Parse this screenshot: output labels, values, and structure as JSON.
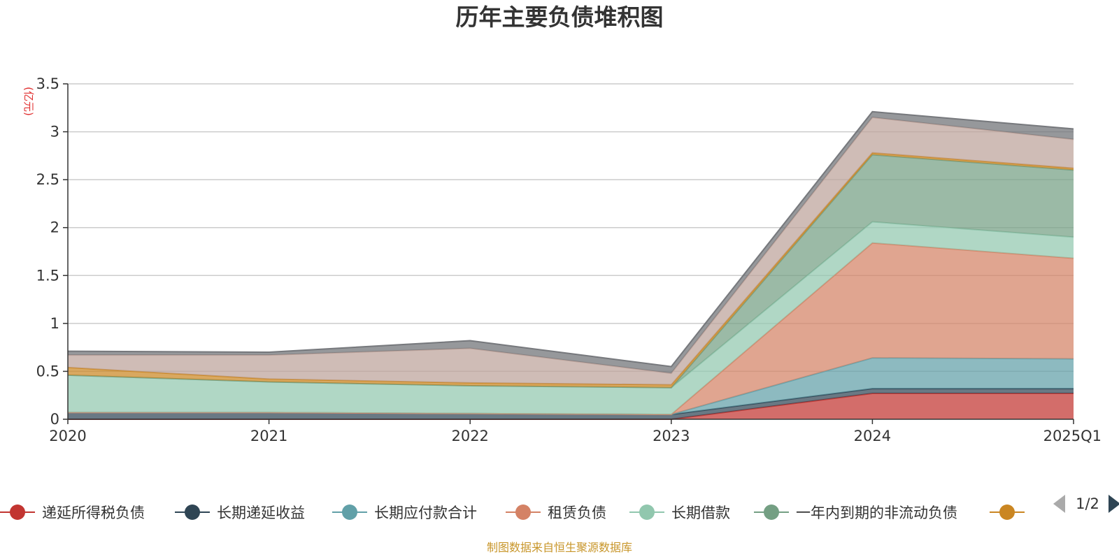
{
  "chart_data": {
    "type": "area",
    "stacked": true,
    "title": "历年主要负债堆积图",
    "unit": "(亿元)",
    "x": [
      "2020",
      "2021",
      "2022",
      "2023",
      "2024",
      "2025Q1"
    ],
    "ylim": [
      0,
      3.5
    ],
    "yticks": [
      "0",
      "0.5",
      "1",
      "1.5",
      "2",
      "2.5",
      "3",
      "3.5"
    ],
    "grid": true,
    "legend_position": "bottom",
    "legend_page": "1/2",
    "series": [
      {
        "name": "递延所得税负债",
        "color": "#c23531",
        "values": [
          0,
          0,
          0,
          0,
          0.27,
          0.27
        ]
      },
      {
        "name": "长期递延收益",
        "color": "#2f4554",
        "values": [
          0.07,
          0.07,
          0.06,
          0.05,
          0.05,
          0.05
        ]
      },
      {
        "name": "长期应付款合计",
        "color": "#61a0a8",
        "values": [
          0,
          0,
          0,
          0,
          0.32,
          0.31
        ]
      },
      {
        "name": "租赁负债",
        "color": "#d48265",
        "values": [
          0,
          0,
          0,
          0,
          1.2,
          1.05
        ]
      },
      {
        "name": "长期借款",
        "color": "#91c7ae",
        "values": [
          0.39,
          0.32,
          0.29,
          0.28,
          0.22,
          0.22
        ]
      },
      {
        "name": "一年内到期的非流动负债",
        "color": "#749f83",
        "values": [
          0,
          0,
          0,
          0,
          0.7,
          0.7
        ]
      },
      {
        "name": "",
        "color": "#ca8622",
        "values": [
          0.08,
          0.03,
          0.03,
          0.03,
          0.02,
          0.02
        ]
      },
      {
        "name": "",
        "color": "#bda29a",
        "values": [
          0.13,
          0.25,
          0.36,
          0.12,
          0.37,
          0.3
        ]
      },
      {
        "name": "",
        "color": "#6e7074",
        "values": [
          0.04,
          0.03,
          0.08,
          0.07,
          0.06,
          0.11
        ]
      }
    ]
  },
  "source_note": "制图数据来自恒生聚源数据库"
}
